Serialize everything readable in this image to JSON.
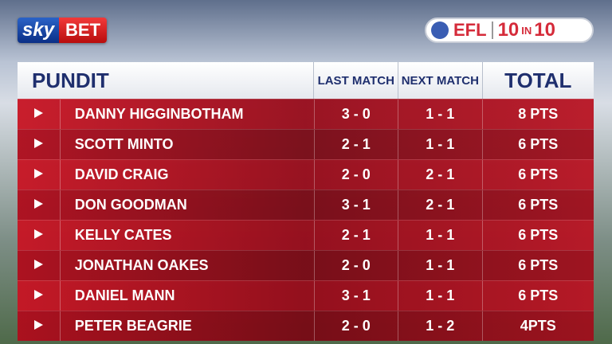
{
  "logos": {
    "sky": "sky",
    "bet": "BET",
    "efl": "EFL",
    "ten_a": "10",
    "in": "IN",
    "ten_b": "10"
  },
  "table": {
    "headers": [
      "PUNDIT",
      "LAST MATCH",
      "NEXT MATCH",
      "TOTAL"
    ],
    "rows": [
      [
        "DANNY HIGGINBOTHAM",
        "3 - 0",
        "1 - 1",
        "8 PTS"
      ],
      [
        "SCOTT MINTO",
        "2 - 1",
        "1 - 1",
        "6 PTS"
      ],
      [
        "DAVID CRAIG",
        "2 - 0",
        "2 - 1",
        "6 PTS"
      ],
      [
        "DON GOODMAN",
        "3 - 1",
        "2 - 1",
        "6 PTS"
      ],
      [
        "KELLY CATES",
        "2 - 1",
        "1 - 1",
        "6 PTS"
      ],
      [
        "JONATHAN OAKES",
        "2 - 0",
        "1 - 1",
        "6 PTS"
      ],
      [
        "DANIEL MANN",
        "3 - 1",
        "1 - 1",
        "6 PTS"
      ],
      [
        "PETER BEAGRIE",
        "2 - 0",
        "1 - 2",
        "4PTS"
      ]
    ]
  }
}
